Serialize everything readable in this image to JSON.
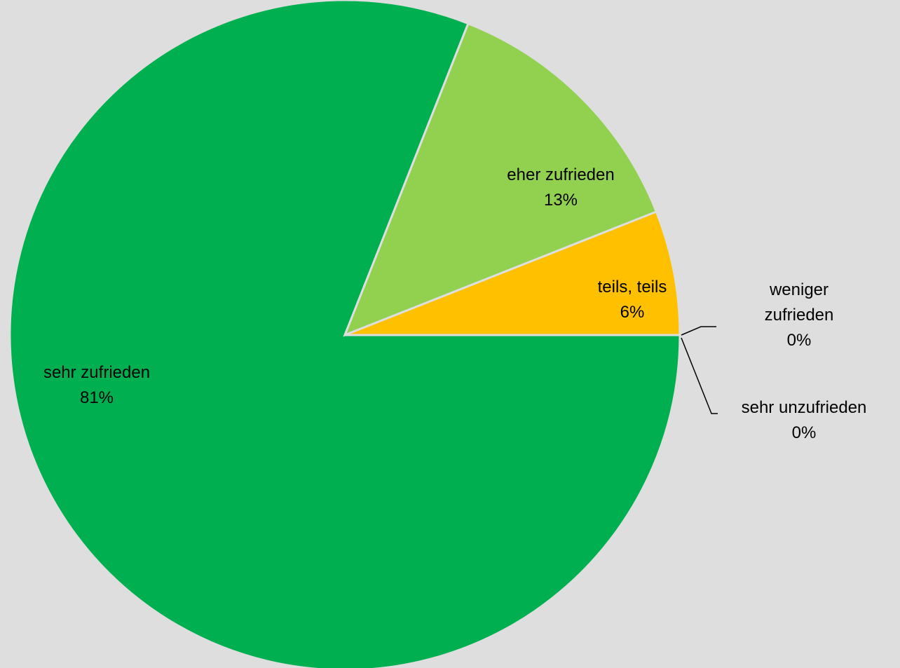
{
  "chart_data": {
    "type": "pie",
    "categories": [
      "sehr zufrieden",
      "eher zufrieden",
      "teils, teils",
      "weniger zufrieden",
      "sehr unzufrieden"
    ],
    "values": [
      81,
      13,
      6,
      0,
      0
    ],
    "value_labels": [
      "81%",
      "13%",
      "6%",
      "0%",
      "0%"
    ],
    "colors": [
      "#00b050",
      "#92d050",
      "#ffc000",
      "#ff6600",
      "#c00000"
    ]
  }
}
